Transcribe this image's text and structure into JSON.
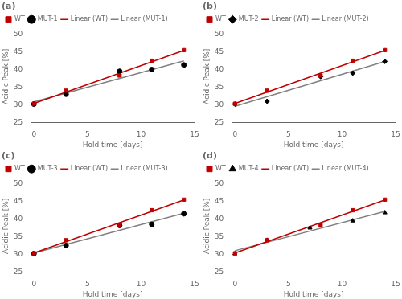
{
  "chart_data": [
    {
      "type": "scatter",
      "title": "(a)",
      "xlabel": "Hold time [days]",
      "ylabel": "Acidic Peak [%]",
      "xlim": [
        -0.3,
        15
      ],
      "ylim": [
        25,
        51
      ],
      "xticks": [
        0,
        5,
        10,
        15
      ],
      "yticks": [
        25,
        30,
        35,
        40,
        45,
        50
      ],
      "grid": false,
      "legend": "upper left",
      "series": [
        {
          "name": "WT",
          "type": "scatter",
          "color": "#c00000",
          "marker": "square",
          "x": [
            0,
            3,
            8,
            11,
            14
          ],
          "values": [
            30.3,
            34.0,
            38.3,
            42.5,
            45.5
          ]
        },
        {
          "name": "MUT-1",
          "type": "scatter",
          "color": "#000000",
          "marker": "circle",
          "x": [
            0,
            3,
            8,
            11,
            14
          ],
          "values": [
            30.2,
            33.0,
            39.5,
            40.0,
            41.3
          ]
        },
        {
          "name": "Linear (WT)",
          "type": "line",
          "color": "#c00000",
          "line_style": "solid",
          "x": [
            0,
            14
          ],
          "values": [
            30.3817,
            45.4284
          ]
        },
        {
          "name": "Linear (MUT-1)",
          "type": "line",
          "color": "#808080",
          "line_style": "solid",
          "x": [
            0,
            14
          ],
          "values": [
            30.833,
            42.4355
          ]
        }
      ]
    },
    {
      "type": "scatter",
      "title": "(b)",
      "xlabel": "Hold time [days]",
      "ylabel": "Acidic Peak [%]",
      "xlim": [
        -0.3,
        15
      ],
      "ylim": [
        25,
        51
      ],
      "xticks": [
        0,
        5,
        10,
        15
      ],
      "yticks": [
        25,
        30,
        35,
        40,
        45,
        50
      ],
      "grid": false,
      "legend": "upper left",
      "series": [
        {
          "name": "WT",
          "type": "scatter",
          "color": "#c00000",
          "marker": "square",
          "x": [
            0,
            3,
            8,
            11,
            14
          ],
          "values": [
            30.3,
            34.0,
            38.3,
            42.5,
            45.5
          ]
        },
        {
          "name": "MUT-2",
          "type": "scatter",
          "color": "#000000",
          "marker": "diamond",
          "x": [
            0,
            3,
            8,
            11,
            14
          ],
          "values": [
            30.2,
            31.0,
            38.0,
            39.0,
            42.3
          ]
        },
        {
          "name": "Linear (WT)",
          "type": "line",
          "color": "#c00000",
          "line_style": "solid",
          "x": [
            0,
            14
          ],
          "values": [
            30.3817,
            45.4284
          ]
        },
        {
          "name": "Linear (MUT-2)",
          "type": "line",
          "color": "#808080",
          "line_style": "solid",
          "x": [
            0,
            14
          ],
          "values": [
            29.5716,
            42.2657
          ]
        }
      ]
    },
    {
      "type": "scatter",
      "title": "(c)",
      "xlabel": "Hold time [days]",
      "ylabel": "Acidic Peak [%]",
      "xlim": [
        -0.3,
        15
      ],
      "ylim": [
        25,
        51
      ],
      "xticks": [
        0,
        5,
        10,
        15
      ],
      "yticks": [
        25,
        30,
        35,
        40,
        45,
        50
      ],
      "grid": false,
      "legend": "upper left",
      "series": [
        {
          "name": "WT",
          "type": "scatter",
          "color": "#c00000",
          "marker": "square",
          "x": [
            0,
            3,
            8,
            11,
            14
          ],
          "values": [
            30.3,
            34.0,
            38.3,
            42.5,
            45.5
          ]
        },
        {
          "name": "MUT-3",
          "type": "scatter",
          "color": "#000000",
          "marker": "circle",
          "x": [
            0,
            3,
            8,
            11,
            14
          ],
          "values": [
            30.2,
            32.5,
            38.2,
            38.5,
            41.5
          ]
        },
        {
          "name": "Linear (WT)",
          "type": "line",
          "color": "#c00000",
          "line_style": "solid",
          "x": [
            0,
            14
          ],
          "values": [
            30.3817,
            45.4284
          ]
        },
        {
          "name": "Linear (MUT-3)",
          "type": "line",
          "color": "#808080",
          "line_style": "solid",
          "x": [
            0,
            14
          ],
          "values": [
            30.3936,
            41.645
          ]
        }
      ]
    },
    {
      "type": "scatter",
      "title": "(d)",
      "xlabel": "Hold time [days]",
      "ylabel": "Acidic Peak [%]",
      "xlim": [
        -0.3,
        15
      ],
      "ylim": [
        25,
        51
      ],
      "xticks": [
        0,
        5,
        10,
        15
      ],
      "yticks": [
        25,
        30,
        35,
        40,
        45,
        50
      ],
      "grid": false,
      "legend": "upper left",
      "series": [
        {
          "name": "WT",
          "type": "scatter",
          "color": "#c00000",
          "marker": "square",
          "x": [
            0,
            3,
            8,
            11,
            14
          ],
          "values": [
            30.3,
            34.0,
            38.3,
            42.5,
            45.5
          ]
        },
        {
          "name": "MUT-4",
          "type": "scatter",
          "color": "#000000",
          "marker": "triangle",
          "x": [
            0,
            3,
            7,
            11,
            14
          ],
          "values": [
            30.2,
            34.0,
            37.5,
            39.5,
            41.8
          ]
        },
        {
          "name": "Linear (WT)",
          "type": "line",
          "color": "#c00000",
          "line_style": "solid",
          "x": [
            0,
            14
          ],
          "values": [
            30.3817,
            45.4284
          ]
        },
        {
          "name": "Linear (MUT-4)",
          "type": "line",
          "color": "#808080",
          "line_style": "solid",
          "x": [
            0,
            14
          ],
          "values": [
            31.0431,
            42.1569
          ]
        }
      ]
    }
  ]
}
